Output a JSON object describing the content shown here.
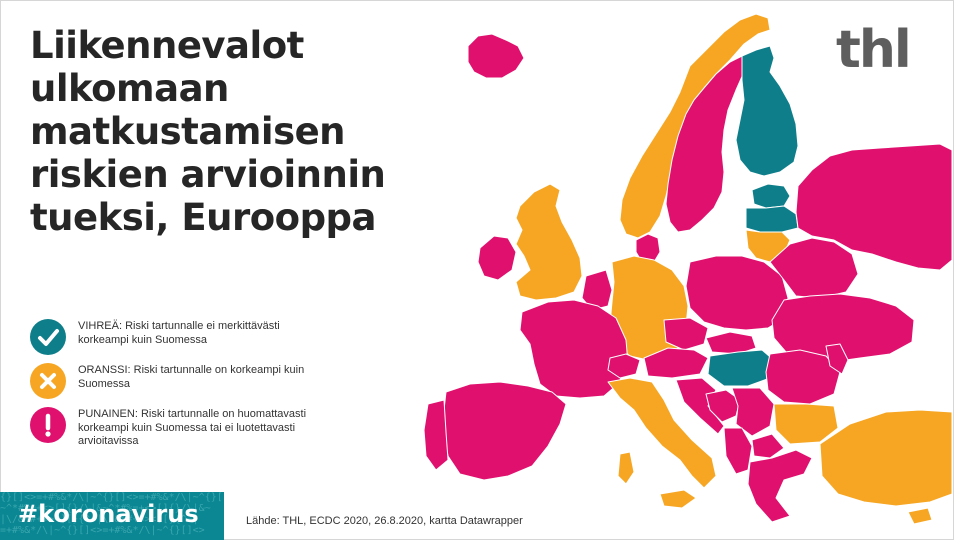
{
  "title": "Liikennevalot ulkomaan matkustamisen riskien arvioinnin tueksi, Eurooppa",
  "logo": "thl",
  "legend": [
    {
      "status": "green",
      "color": "#0e7f8a",
      "icon": "check-icon",
      "text": "VIHREÄ: Riski tartunnalle ei merkittävästi korkeampi kuin Suomessa"
    },
    {
      "status": "orange",
      "color": "#f6a623",
      "icon": "cross-icon",
      "text": "ORANSSI: Riski tartunnalle on korkeampi kuin Suomessa"
    },
    {
      "status": "red",
      "color": "#e0106e",
      "icon": "exclamation-icon",
      "text": "PUNAINEN: Riski tartunnalle on huomattavasti korkeampi kuin Suomessa tai ei luotettavasti arvioitavissa"
    }
  ],
  "hashtag": "#koronavirus",
  "source": "Lähde: THL, ECDC 2020, 26.8.2020, kartta Datawrapper",
  "colors": {
    "green": "#0e7f8a",
    "orange": "#f6a623",
    "red": "#e0106e",
    "teal_tag": "#0a8793"
  }
}
